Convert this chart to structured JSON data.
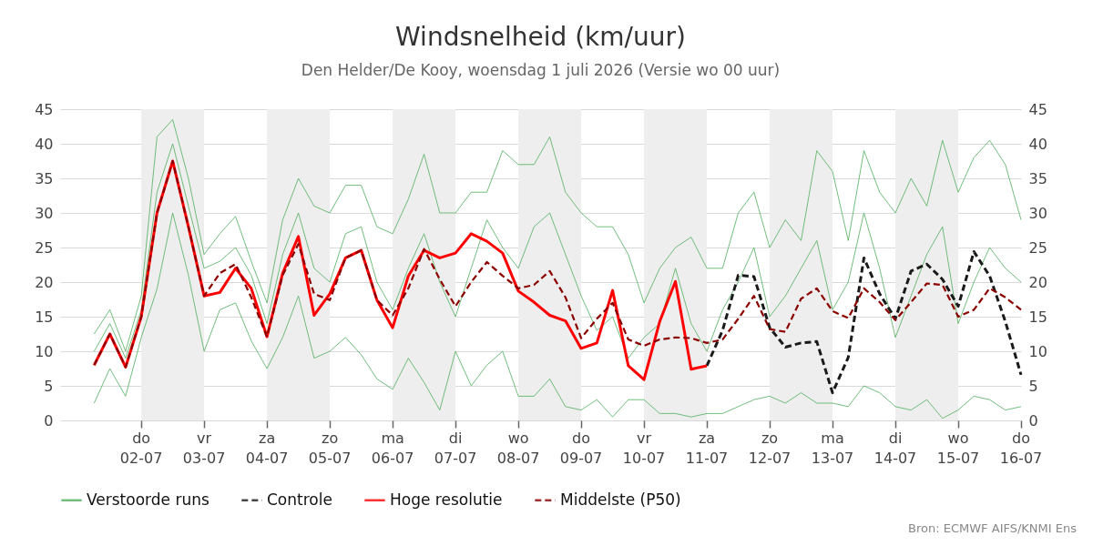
{
  "chart_data": {
    "type": "line",
    "title": "Windsnelheid (km/uur)",
    "subtitle": "Den Helder/De Kooy, woensdag  1 juli 2026 (Versie wo 00 uur)",
    "annotations": [
      "Bron: ECMWF AIFS/KNMI Ens"
    ],
    "x": [
      "2026-07-01T06:00",
      "2026-07-01T12:00",
      "2026-07-01T18:00",
      "2026-07-02T00:00",
      "2026-07-02T06:00",
      "2026-07-02T12:00",
      "2026-07-02T18:00",
      "2026-07-03T00:00",
      "2026-07-03T06:00",
      "2026-07-03T12:00",
      "2026-07-03T18:00",
      "2026-07-04T00:00",
      "2026-07-04T06:00",
      "2026-07-04T12:00",
      "2026-07-04T18:00",
      "2026-07-05T00:00",
      "2026-07-05T06:00",
      "2026-07-05T12:00",
      "2026-07-05T18:00",
      "2026-07-06T00:00",
      "2026-07-06T06:00",
      "2026-07-06T12:00",
      "2026-07-06T18:00",
      "2026-07-07T00:00",
      "2026-07-07T06:00",
      "2026-07-07T12:00",
      "2026-07-07T18:00",
      "2026-07-08T00:00",
      "2026-07-08T06:00",
      "2026-07-08T12:00",
      "2026-07-08T18:00",
      "2026-07-09T00:00",
      "2026-07-09T06:00",
      "2026-07-09T12:00",
      "2026-07-09T18:00",
      "2026-07-10T00:00",
      "2026-07-10T06:00",
      "2026-07-10T12:00",
      "2026-07-10T18:00",
      "2026-07-11T00:00",
      "2026-07-11T06:00",
      "2026-07-11T12:00",
      "2026-07-11T18:00",
      "2026-07-12T00:00",
      "2026-07-12T06:00",
      "2026-07-12T12:00",
      "2026-07-12T18:00",
      "2026-07-13T00:00",
      "2026-07-13T06:00",
      "2026-07-13T12:00",
      "2026-07-13T18:00",
      "2026-07-14T00:00",
      "2026-07-14T06:00",
      "2026-07-14T12:00",
      "2026-07-14T18:00",
      "2026-07-15T00:00",
      "2026-07-15T06:00",
      "2026-07-15T12:00",
      "2026-07-15T18:00",
      "2026-07-16T00:00"
    ],
    "series": [
      {
        "name": "Verstoorde runs",
        "color": "#4fae5c",
        "line_style": "solid",
        "values": [
          12.5,
          16,
          10,
          18,
          41,
          43.5,
          35,
          24,
          27,
          29.5,
          23,
          17,
          29,
          35,
          31,
          30,
          34,
          34,
          28,
          27,
          32,
          38.5,
          30,
          30,
          33,
          33,
          39,
          37,
          37,
          41,
          33,
          30,
          28,
          28,
          24,
          17,
          22,
          25,
          26.5,
          22,
          22,
          30,
          33,
          25,
          29,
          26,
          39,
          36,
          26,
          39,
          33,
          30,
          35,
          31,
          40.5,
          33,
          38,
          40.5,
          37,
          29
        ]
      },
      {
        "color": "#4fae5c",
        "line_style": "solid",
        "values": [
          2.5,
          7.5,
          3.5,
          12,
          19,
          30,
          21,
          10,
          16,
          17,
          11.5,
          7.5,
          12,
          18,
          9,
          10,
          12,
          9.5,
          6,
          4.5,
          9,
          5.5,
          1.5,
          10,
          5,
          8,
          10,
          3.5,
          3.5,
          6,
          2,
          1.5,
          3,
          0.5,
          3,
          3,
          1,
          1,
          0.5,
          1,
          1,
          2,
          3,
          3.5,
          2.5,
          4,
          2.5,
          2.5,
          2,
          5,
          4,
          2,
          1.5,
          3,
          0.3,
          1.5,
          3.5,
          3,
          1.5,
          2
        ]
      },
      {
        "color": "#4fae5c",
        "line_style": "solid",
        "values": [
          10,
          14,
          9,
          16,
          33,
          40,
          31,
          22,
          23,
          25,
          21,
          14,
          24,
          30,
          22,
          20,
          27,
          28,
          20,
          16,
          22,
          27,
          20,
          15,
          22,
          29,
          25,
          22,
          28,
          30,
          24,
          18,
          13,
          15,
          9,
          12,
          14,
          22,
          14,
          10,
          16,
          20,
          25,
          15,
          18,
          22,
          26,
          16,
          20,
          30,
          22,
          12,
          18,
          24,
          28,
          14,
          20,
          25,
          22,
          20
        ]
      },
      {
        "name": "Controle",
        "color": "#1a1a1a",
        "line_style": "dashed",
        "values": [
          null,
          null,
          null,
          null,
          null,
          null,
          null,
          null,
          null,
          null,
          null,
          null,
          null,
          null,
          null,
          null,
          null,
          null,
          null,
          null,
          null,
          null,
          null,
          null,
          null,
          null,
          null,
          null,
          null,
          null,
          null,
          null,
          null,
          null,
          null,
          null,
          null,
          null,
          null,
          7.9,
          13,
          21,
          20.8,
          13.4,
          10.6,
          11.2,
          11.4,
          4,
          9.1,
          23.5,
          18.3,
          14.7,
          21.6,
          22.6,
          20.4,
          16.5,
          24.4,
          20.9,
          14.3,
          6.6
        ]
      },
      {
        "name": "Hoge resolutie",
        "color": "#ff0000",
        "line_style": "solid",
        "values": [
          8,
          12.5,
          7.7,
          15,
          30,
          37.5,
          28,
          18,
          18.5,
          22,
          19.1,
          12.1,
          21.3,
          26.6,
          15.2,
          18.3,
          23.5,
          24.6,
          17.4,
          13.4,
          20.9,
          24.6,
          23.5,
          24.2,
          27,
          25.9,
          24.2,
          18.7,
          17.1,
          15.2,
          14.4,
          10.4,
          11.2,
          18.8,
          7.9,
          5.9,
          14.3,
          20.1,
          7.4,
          7.9,
          null,
          null,
          null,
          null,
          null,
          null,
          null,
          null,
          null,
          null,
          null,
          null,
          null,
          null,
          null,
          null,
          null,
          null,
          null,
          null
        ]
      },
      {
        "name": "Middelste (P50)",
        "color": "#8b0000",
        "line_style": "dashed",
        "values": [
          8,
          12.5,
          7.7,
          15,
          30,
          37.5,
          28,
          18,
          21.3,
          22.6,
          17.8,
          12.1,
          21,
          25.5,
          18.3,
          17.4,
          23.5,
          24.6,
          17.4,
          15.2,
          19.1,
          24.8,
          20.4,
          16.5,
          20,
          22.9,
          20.9,
          19.1,
          19.6,
          21.6,
          17.8,
          11.9,
          14.7,
          17,
          11.7,
          10.8,
          11.7,
          12,
          11.9,
          11.2,
          11.7,
          14.7,
          18,
          13.2,
          12.8,
          17.6,
          19.1,
          15.8,
          14.8,
          19.1,
          17.1,
          14.5,
          17.1,
          19.8,
          19.6,
          15,
          16,
          19.1,
          17.8,
          16
        ]
      }
    ],
    "xlim": [
      "2026-06-30T17:00",
      "2026-07-16T00:00"
    ],
    "xticks": [
      {
        "value": "2026-07-02",
        "label": "do 02-07"
      },
      {
        "value": "2026-07-03",
        "label": "vr 03-07"
      },
      {
        "value": "2026-07-04",
        "label": "za 04-07"
      },
      {
        "value": "2026-07-05",
        "label": "zo 05-07"
      },
      {
        "value": "2026-07-06",
        "label": "ma 06-07"
      },
      {
        "value": "2026-07-07",
        "label": "di 07-07"
      },
      {
        "value": "2026-07-08",
        "label": "wo 08-07"
      },
      {
        "value": "2026-07-09",
        "label": "do 09-07"
      },
      {
        "value": "2026-07-10",
        "label": "vr 10-07"
      },
      {
        "value": "2026-07-11",
        "label": "za 11-07"
      },
      {
        "value": "2026-07-12",
        "label": "zo 12-07"
      },
      {
        "value": "2026-07-13",
        "label": "ma 13-07"
      },
      {
        "value": "2026-07-14",
        "label": "di 14-07"
      },
      {
        "value": "2026-07-15",
        "label": "wo 15-07"
      },
      {
        "value": "2026-07-16",
        "label": "do 16-07"
      }
    ],
    "ylim": [
      0,
      45
    ],
    "yticks": [
      0,
      5,
      10,
      15,
      20,
      25,
      30,
      35,
      40,
      45
    ],
    "y2lim": [
      0,
      45
    ],
    "y2ticks": [
      0,
      5,
      10,
      15,
      20,
      25,
      30,
      35,
      40,
      45
    ],
    "grid": "y",
    "legend": "bottom",
    "bands": [
      {
        "axis": "x",
        "from": "2026-07-02",
        "to": "2026-07-03",
        "color": "#eeeeee"
      },
      {
        "axis": "x",
        "from": "2026-07-04",
        "to": "2026-07-05",
        "color": "#eeeeee"
      },
      {
        "axis": "x",
        "from": "2026-07-06",
        "to": "2026-07-07",
        "color": "#eeeeee"
      },
      {
        "axis": "x",
        "from": "2026-07-08",
        "to": "2026-07-09",
        "color": "#eeeeee"
      },
      {
        "axis": "x",
        "from": "2026-07-10",
        "to": "2026-07-11",
        "color": "#eeeeee"
      },
      {
        "axis": "x",
        "from": "2026-07-12",
        "to": "2026-07-13",
        "color": "#eeeeee"
      },
      {
        "axis": "x",
        "from": "2026-07-14",
        "to": "2026-07-15",
        "color": "#eeeeee"
      }
    ]
  }
}
